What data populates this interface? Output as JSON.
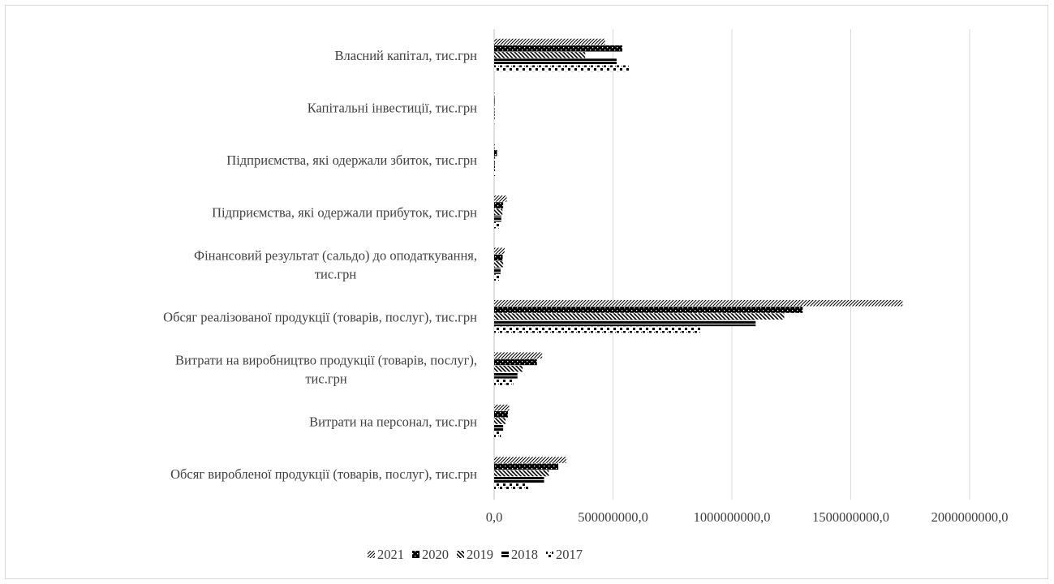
{
  "chart_data": {
    "type": "bar",
    "orientation": "horizontal",
    "categories": [
      "Обсяг виробленої продукції (товарів, послуг), тис.грн",
      "Витрати на персонал, тис.грн",
      "Витрати на виробництво продукції (товарів, послуг), тис.грн",
      "Обсяг реалізованої продукції (товарів, послуг), тис.грн",
      "Фінансовий результат (сальдо) до оподаткування, тис.грн",
      "Підприємства, які одержали прибуток, тис.грн",
      "Підприємства, які одержали збиток, тис.грн",
      "Капітальні інвестиції, тис.грн",
      "Власний капітал, тис.грн"
    ],
    "category_label_lines": [
      [
        "Обсяг виробленої продукції (товарів, послуг), тис.грн"
      ],
      [
        "Витрати на персонал, тис.грн"
      ],
      [
        "Витрати на виробництво продукції (товарів, послуг),",
        "тис.грн"
      ],
      [
        "Обсяг реалізованої продукції (товарів, послуг), тис.грн"
      ],
      [
        "Фінансовий результат (сальдо) до оподаткування,",
        "тис.грн"
      ],
      [
        "Підприємства, які одержали прибуток, тис.грн"
      ],
      [
        "Підприємства, які одержали збиток, тис.грн"
      ],
      [
        "Капітальні інвестиції, тис.грн"
      ],
      [
        "Власний капітал, тис.грн"
      ]
    ],
    "series": [
      {
        "name": "2021",
        "pattern": "diag-fine",
        "values": [
          303000000,
          63000000,
          202000000,
          1718000000,
          44000000,
          53000000,
          3000000,
          1500000,
          467000000
        ]
      },
      {
        "name": "2020",
        "pattern": "solid-dots",
        "values": [
          270000000,
          58000000,
          180000000,
          1298000000,
          36000000,
          38000000,
          12000000,
          1400000,
          539000000
        ]
      },
      {
        "name": "2019",
        "pattern": "diag-thick",
        "values": [
          230000000,
          48000000,
          120000000,
          1220000000,
          38000000,
          35000000,
          4000000,
          1300000,
          383000000
        ]
      },
      {
        "name": "2018",
        "pattern": "horizontal",
        "values": [
          210000000,
          38000000,
          98000000,
          1100000000,
          27000000,
          30000000,
          3000000,
          1200000,
          515000000
        ]
      },
      {
        "name": "2017",
        "pattern": "sparse-dots",
        "values": [
          145000000,
          28000000,
          80000000,
          870000000,
          22000000,
          24000000,
          4000000,
          1000000,
          570000000
        ]
      }
    ],
    "xlim": [
      0,
      2000000000
    ],
    "x_ticks": [
      0,
      500000000,
      1000000000,
      1500000000,
      2000000000
    ],
    "x_tick_labels": [
      "0,0",
      "500000000,0",
      "1000000000,0",
      "1500000000,0",
      "2000000000,0"
    ],
    "grid": true,
    "legend_position": "bottom",
    "title": "",
    "xlabel": "",
    "ylabel": ""
  }
}
